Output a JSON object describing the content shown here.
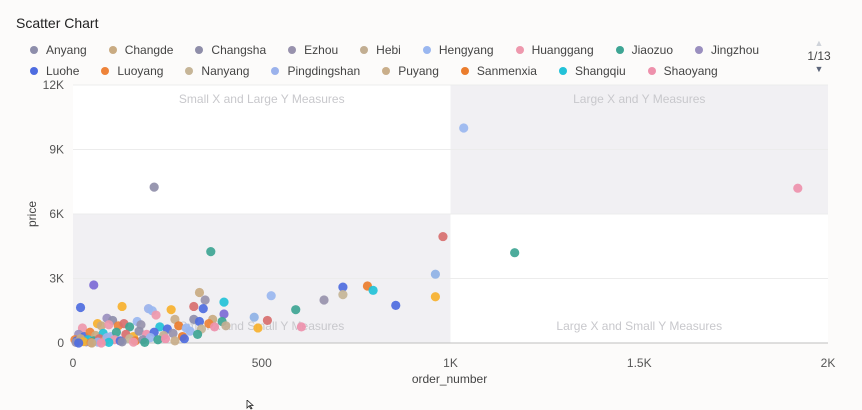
{
  "title": "Scatter Chart",
  "legend_page": "1/13",
  "colors": {
    "Anyang": "#8e8eab",
    "Changde": "#c9ab82",
    "Changsha": "#8f8ea9",
    "Ezhou": "#9892ad",
    "Hebi": "#c2ae92",
    "Hengyang": "#9ab7f0",
    "Huanggang": "#ee98ad",
    "Jiaozuo": "#3ea594",
    "Jingzhou": "#9a8fbf",
    "Luohe": "#4e6ce0",
    "Luoyang": "#ee8339",
    "Nanyang": "#c6b597",
    "Pingdingshan": "#9bb2ec",
    "Puyang": "#c9ae8a",
    "Sanmenxia": "#eb7d2d",
    "Shangqiu": "#23c2d8",
    "Shaoyang": "#ee91ac"
  },
  "quadrant_labels": {
    "top_left": "Small X and Large Y Measures",
    "top_right": "Large X and Y Measures",
    "bottom_left": "Small X and Small Y Measures",
    "bottom_right": "Large X and Small Y Measures"
  },
  "chart_data": {
    "type": "scatter",
    "title": "Scatter Chart",
    "xlabel": "order_number",
    "ylabel": "price",
    "xlim": [
      0,
      2000
    ],
    "ylim": [
      0,
      12000
    ],
    "x_ticks": [
      "0",
      "500",
      "1K",
      "1.5K",
      "2K"
    ],
    "x_tick_values": [
      0,
      500,
      1000,
      1500,
      2000
    ],
    "y_ticks": [
      "0",
      "3K",
      "6K",
      "9K",
      "12K"
    ],
    "y_tick_values": [
      0,
      3000,
      6000,
      9000,
      12000
    ],
    "quadrant_split": {
      "x": 1000,
      "y": 6000
    },
    "legend_position": "top",
    "legend_rows": [
      [
        "Anyang",
        "Changde",
        "Changsha",
        "Ezhou",
        "Hebi",
        "Hengyang",
        "Huanggang",
        "Jiaozuo",
        "Jingzhou"
      ],
      [
        "Luohe",
        "Luoyang",
        "Nanyang",
        "Pingdingshan",
        "Puyang",
        "Sanmenxia",
        "Shangqiu",
        "Shaoyang"
      ]
    ],
    "points": [
      {
        "x": 1920,
        "y": 7200,
        "c": "#ee91ac"
      },
      {
        "x": 1035,
        "y": 10000,
        "c": "#9ab7f0"
      },
      {
        "x": 215,
        "y": 7250,
        "c": "#8f8ea9"
      },
      {
        "x": 1170,
        "y": 4200,
        "c": "#3ea594"
      },
      {
        "x": 980,
        "y": 4950,
        "c": "#d86f6f"
      },
      {
        "x": 365,
        "y": 4250,
        "c": "#3ea594"
      },
      {
        "x": 960,
        "y": 3200,
        "c": "#8fb2e6"
      },
      {
        "x": 960,
        "y": 2150,
        "c": "#f7b12e"
      },
      {
        "x": 715,
        "y": 2600,
        "c": "#4e6ce0"
      },
      {
        "x": 780,
        "y": 2650,
        "c": "#eb7d2d"
      },
      {
        "x": 795,
        "y": 2450,
        "c": "#23c2d8"
      },
      {
        "x": 715,
        "y": 2250,
        "c": "#c6b597"
      },
      {
        "x": 665,
        "y": 2000,
        "c": "#9892ad"
      },
      {
        "x": 855,
        "y": 1750,
        "c": "#4e6ce0"
      },
      {
        "x": 525,
        "y": 2200,
        "c": "#9ab7f0"
      },
      {
        "x": 590,
        "y": 1550,
        "c": "#3ea594"
      },
      {
        "x": 55,
        "y": 2700,
        "c": "#7d6ad6"
      },
      {
        "x": 20,
        "y": 1650,
        "c": "#4e6ce0"
      },
      {
        "x": 130,
        "y": 1700,
        "c": "#f7b12e"
      },
      {
        "x": 335,
        "y": 2350,
        "c": "#c9ab82"
      },
      {
        "x": 350,
        "y": 2000,
        "c": "#9892ad"
      },
      {
        "x": 400,
        "y": 1900,
        "c": "#23c2d8"
      },
      {
        "x": 320,
        "y": 1700,
        "c": "#d86f6f"
      },
      {
        "x": 200,
        "y": 1600,
        "c": "#9bb2ec"
      },
      {
        "x": 210,
        "y": 1500,
        "c": "#9ab7f0"
      },
      {
        "x": 260,
        "y": 1550,
        "c": "#f7b12e"
      },
      {
        "x": 345,
        "y": 1600,
        "c": "#4e6ce0"
      },
      {
        "x": 400,
        "y": 1350,
        "c": "#7d6ad6"
      },
      {
        "x": 480,
        "y": 1200,
        "c": "#8fb2e6"
      },
      {
        "x": 515,
        "y": 1050,
        "c": "#d86f6f"
      },
      {
        "x": 605,
        "y": 750,
        "c": "#ee91ac"
      },
      {
        "x": 490,
        "y": 700,
        "c": "#f7b12e"
      },
      {
        "x": 90,
        "y": 1150,
        "c": "#9a8fbf"
      },
      {
        "x": 105,
        "y": 1050,
        "c": "#8e8eab"
      },
      {
        "x": 170,
        "y": 1000,
        "c": "#9ab7f0"
      },
      {
        "x": 220,
        "y": 1300,
        "c": "#ee98ad"
      },
      {
        "x": 270,
        "y": 1100,
        "c": "#c9ae8a"
      },
      {
        "x": 320,
        "y": 1100,
        "c": "#8e8eab"
      },
      {
        "x": 335,
        "y": 1000,
        "c": "#4e6ce0"
      },
      {
        "x": 370,
        "y": 1100,
        "c": "#c9ab82"
      },
      {
        "x": 395,
        "y": 1000,
        "c": "#3ea594"
      },
      {
        "x": 360,
        "y": 900,
        "c": "#ee8339"
      },
      {
        "x": 405,
        "y": 800,
        "c": "#c2ae92"
      },
      {
        "x": 65,
        "y": 900,
        "c": "#f7b12e"
      },
      {
        "x": 25,
        "y": 700,
        "c": "#ee98ad"
      },
      {
        "x": 75,
        "y": 800,
        "c": "#c9ab82"
      },
      {
        "x": 95,
        "y": 850,
        "c": "#ee98ad"
      },
      {
        "x": 120,
        "y": 800,
        "c": "#ee8339"
      },
      {
        "x": 135,
        "y": 900,
        "c": "#d86f6f"
      },
      {
        "x": 150,
        "y": 750,
        "c": "#3ea594"
      },
      {
        "x": 180,
        "y": 850,
        "c": "#9892ad"
      },
      {
        "x": 230,
        "y": 750,
        "c": "#23c2d8"
      },
      {
        "x": 250,
        "y": 650,
        "c": "#4e6ce0"
      },
      {
        "x": 280,
        "y": 800,
        "c": "#eb7d2d"
      },
      {
        "x": 300,
        "y": 700,
        "c": "#9ab7f0"
      },
      {
        "x": 340,
        "y": 650,
        "c": "#c6b597"
      },
      {
        "x": 375,
        "y": 750,
        "c": "#ee91ac"
      },
      {
        "x": 15,
        "y": 400,
        "c": "#9a8fbf"
      },
      {
        "x": 30,
        "y": 300,
        "c": "#4e6ce0"
      },
      {
        "x": 45,
        "y": 500,
        "c": "#ee8339"
      },
      {
        "x": 60,
        "y": 350,
        "c": "#c9ab82"
      },
      {
        "x": 80,
        "y": 450,
        "c": "#23c2d8"
      },
      {
        "x": 100,
        "y": 300,
        "c": "#9bb2ec"
      },
      {
        "x": 115,
        "y": 500,
        "c": "#3ea594"
      },
      {
        "x": 140,
        "y": 400,
        "c": "#d86f6f"
      },
      {
        "x": 160,
        "y": 300,
        "c": "#f7b12e"
      },
      {
        "x": 175,
        "y": 550,
        "c": "#8f8ea9"
      },
      {
        "x": 195,
        "y": 400,
        "c": "#ee91ac"
      },
      {
        "x": 215,
        "y": 500,
        "c": "#4e6ce0"
      },
      {
        "x": 240,
        "y": 350,
        "c": "#c2ae92"
      },
      {
        "x": 265,
        "y": 450,
        "c": "#9892ad"
      },
      {
        "x": 290,
        "y": 300,
        "c": "#eb7d2d"
      },
      {
        "x": 310,
        "y": 550,
        "c": "#9ab7f0"
      },
      {
        "x": 330,
        "y": 400,
        "c": "#3ea594"
      },
      {
        "x": 5,
        "y": 150,
        "c": "#ee8339"
      },
      {
        "x": 10,
        "y": 100,
        "c": "#4e6ce0"
      },
      {
        "x": 20,
        "y": 200,
        "c": "#c9ab82"
      },
      {
        "x": 35,
        "y": 50,
        "c": "#9a8fbf"
      },
      {
        "x": 40,
        "y": 150,
        "c": "#23c2d8"
      },
      {
        "x": 55,
        "y": 100,
        "c": "#3ea594"
      },
      {
        "x": 70,
        "y": 200,
        "c": "#d86f6f"
      },
      {
        "x": 85,
        "y": 100,
        "c": "#f7b12e"
      },
      {
        "x": 90,
        "y": 250,
        "c": "#9bb2ec"
      },
      {
        "x": 110,
        "y": 150,
        "c": "#ee98ad"
      },
      {
        "x": 125,
        "y": 100,
        "c": "#4e6ce0"
      },
      {
        "x": 150,
        "y": 200,
        "c": "#c6b597"
      },
      {
        "x": 165,
        "y": 100,
        "c": "#eb7d2d"
      },
      {
        "x": 185,
        "y": 150,
        "c": "#8e8eab"
      },
      {
        "x": 205,
        "y": 250,
        "c": "#9ab7f0"
      },
      {
        "x": 225,
        "y": 150,
        "c": "#3ea594"
      },
      {
        "x": 245,
        "y": 200,
        "c": "#ee91ac"
      },
      {
        "x": 270,
        "y": 100,
        "c": "#c9ae8a"
      },
      {
        "x": 295,
        "y": 200,
        "c": "#4e6ce0"
      },
      {
        "x": 8,
        "y": 30,
        "c": "#9892ad"
      },
      {
        "x": 28,
        "y": 60,
        "c": "#f7b12e"
      },
      {
        "x": 48,
        "y": 20,
        "c": "#ee8339"
      },
      {
        "x": 66,
        "y": 40,
        "c": "#9bb2ec"
      },
      {
        "x": 95,
        "y": 30,
        "c": "#23c2d8"
      },
      {
        "x": 130,
        "y": 50,
        "c": "#8f8ea9"
      },
      {
        "x": 160,
        "y": 40,
        "c": "#ee98ad"
      },
      {
        "x": 190,
        "y": 30,
        "c": "#3ea594"
      },
      {
        "x": 15,
        "y": 0,
        "c": "#4e6ce0"
      },
      {
        "x": 50,
        "y": 0,
        "c": "#c9ab82"
      },
      {
        "x": 75,
        "y": 0,
        "c": "#ee91ac"
      }
    ]
  }
}
